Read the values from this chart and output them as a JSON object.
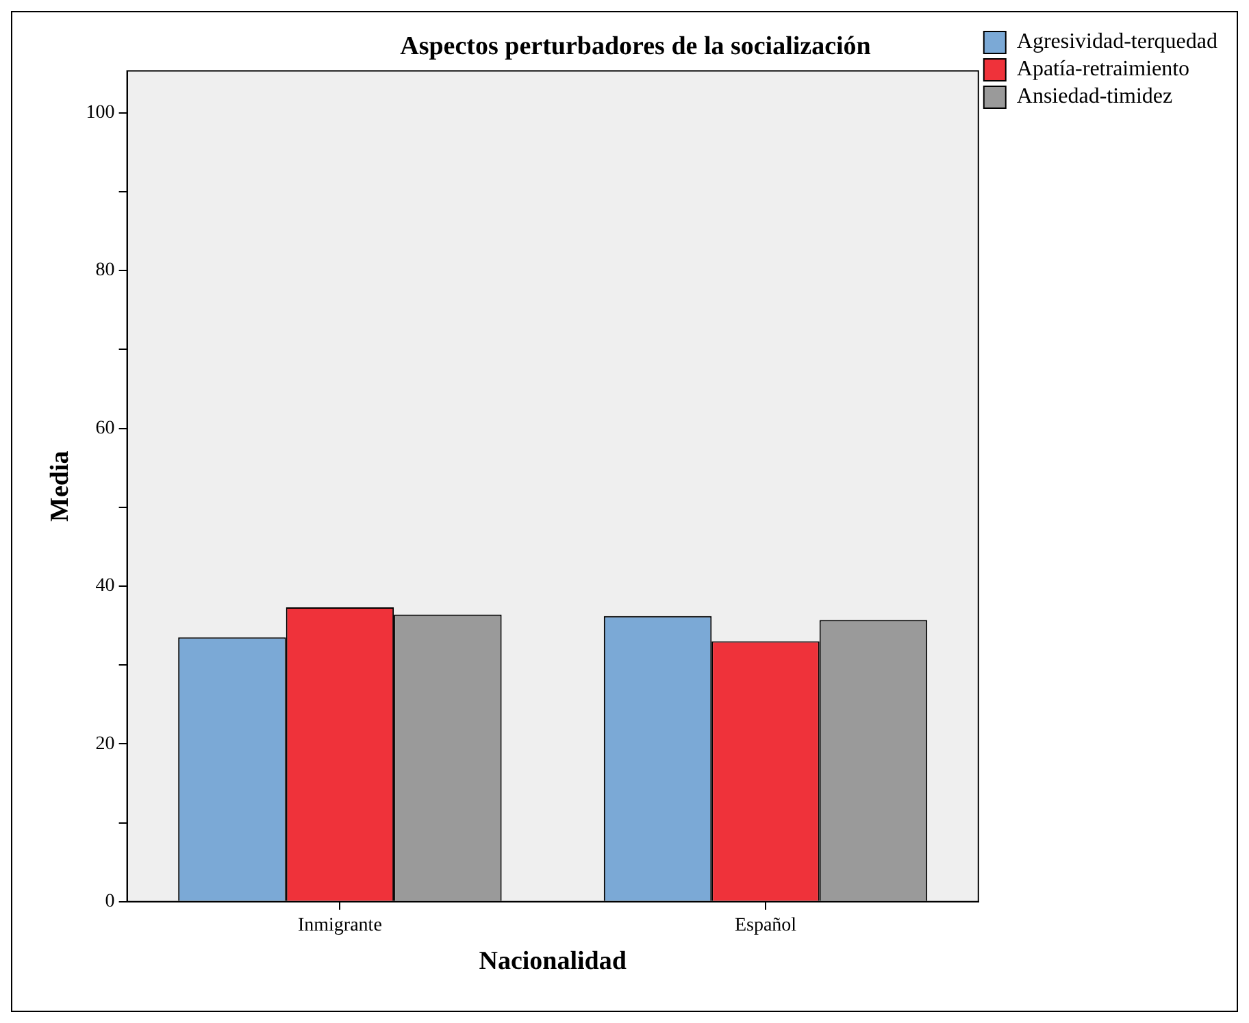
{
  "chart_data": {
    "type": "bar",
    "title": "Aspectos perturbadores de la socialización",
    "xlabel": "Nacionalidad",
    "ylabel": "Media",
    "categories": [
      "Inmigrante",
      "Español"
    ],
    "series": [
      {
        "name": "Agresividad-terquedad",
        "color": "#7ba9d6",
        "values": [
          33.5,
          36.2
        ]
      },
      {
        "name": "Apatía-retraimiento",
        "color": "#ef323a",
        "values": [
          37.3,
          33.0
        ]
      },
      {
        "name": "Ansiedad-timidez",
        "color": "#9a9a9a",
        "values": [
          36.4,
          35.7
        ]
      }
    ],
    "ylim": [
      0,
      105.3
    ],
    "yticks": [
      0,
      {
        "value": 10,
        "label": null
      },
      20,
      {
        "value": 30,
        "label": null
      },
      40,
      {
        "value": 50,
        "label": null
      },
      60,
      {
        "value": 70,
        "label": null
      },
      80,
      {
        "value": 90,
        "label": null
      },
      100
    ],
    "grid": false,
    "legend": "top right"
  }
}
